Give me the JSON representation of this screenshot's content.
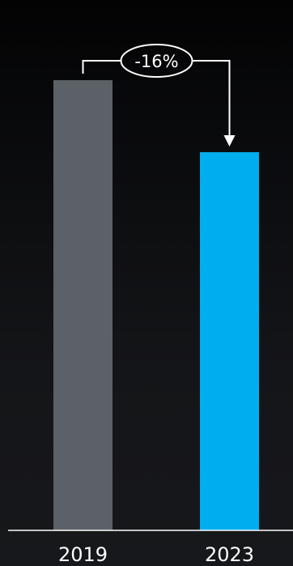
{
  "chart_data": {
    "type": "bar",
    "categories": [
      "2019",
      "2023"
    ],
    "values": [
      100,
      84
    ],
    "ylim": [
      0,
      100
    ],
    "grid": false,
    "annotation": {
      "label": "-16%",
      "from": "2019",
      "to": "2023"
    }
  },
  "colors": {
    "bar_2019": "#5b6167",
    "bar_2023": "#00aeef",
    "axis": "#ffffff",
    "text": "#ffffff",
    "annotation": "#ffffff"
  }
}
